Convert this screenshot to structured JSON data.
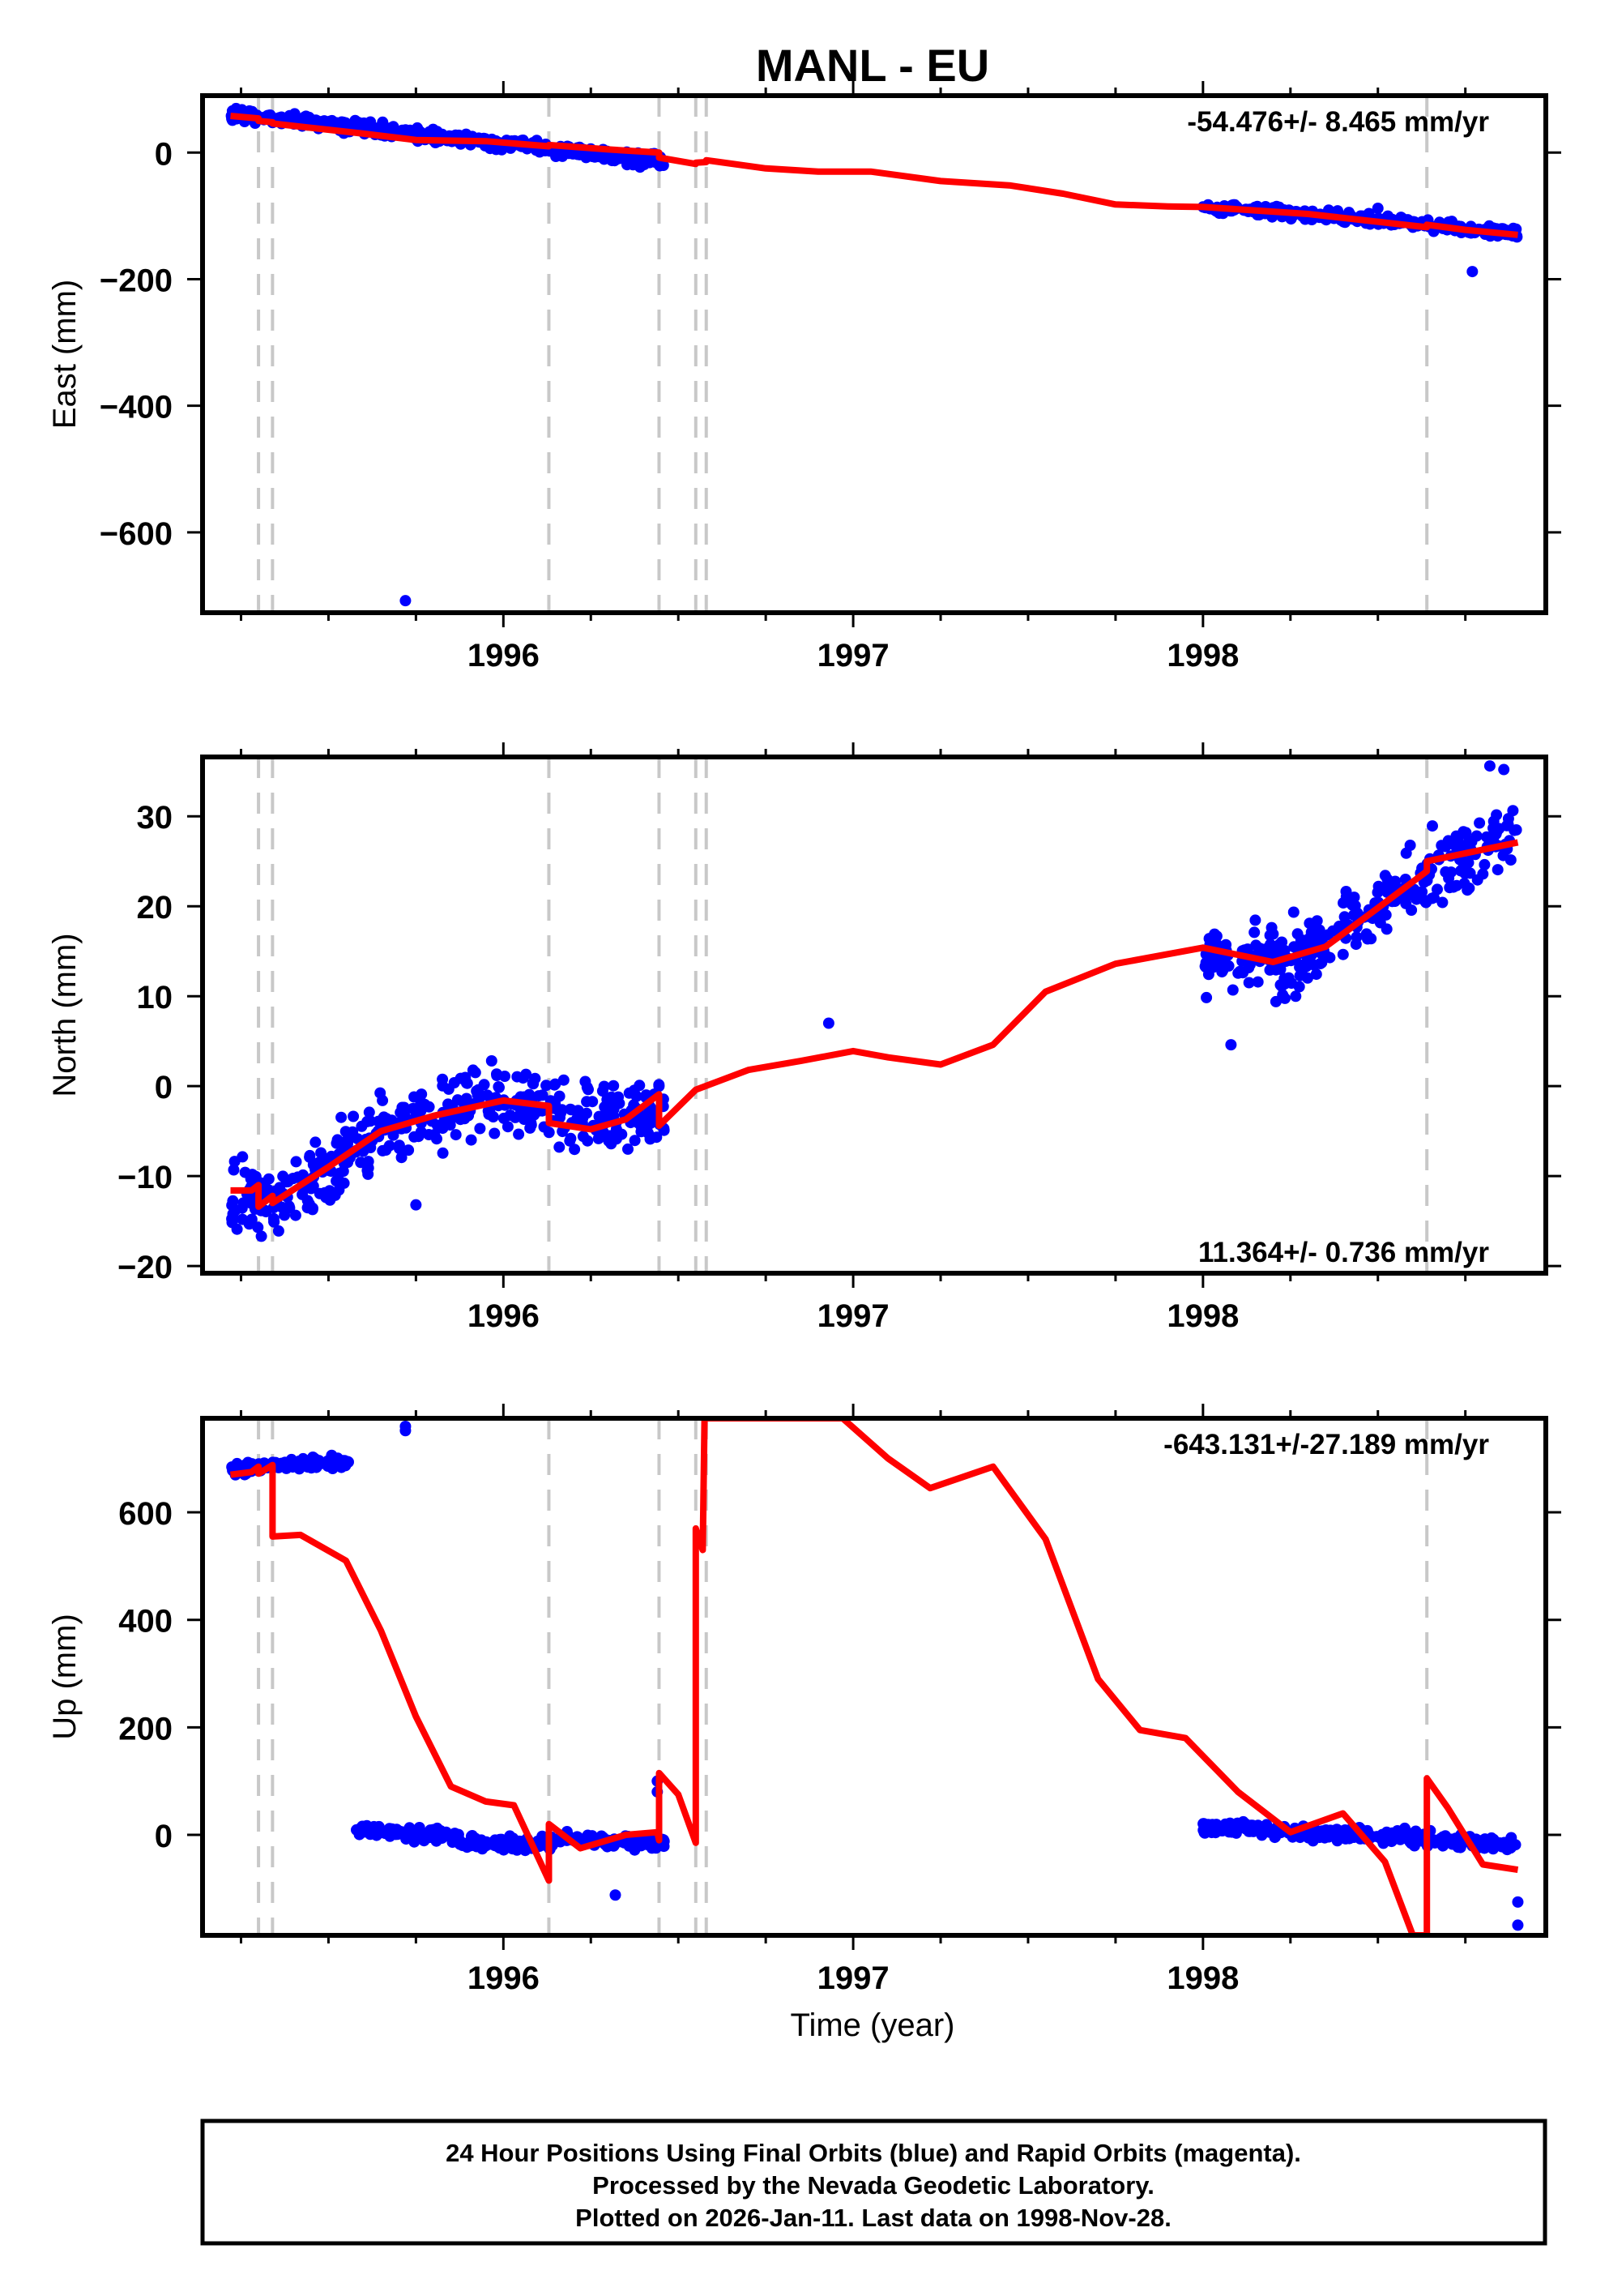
{
  "chart_data": {
    "title": "MANL - EU",
    "type": "scatter",
    "colors": {
      "points": "#0000ff",
      "fit": "#ff0000",
      "breaks": "#c8c8c8",
      "axes": "#000000"
    },
    "x_axis": {
      "label": "Time (year)",
      "range": [
        1995.14,
        1998.98
      ],
      "major_ticks": [
        1996,
        1997,
        1998
      ],
      "major_tick_labels": [
        "1996",
        "1997",
        "1998"
      ],
      "minor_tick_step": 0.25
    },
    "break_lines": [
      1995.3,
      1995.34,
      1996.13,
      1996.445,
      1996.55,
      1996.58,
      1998.64
    ],
    "panels": [
      {
        "id": "east",
        "ylabel": "East (mm)",
        "ylim": [
          -727,
          90
        ],
        "yticks": [
          0,
          -200,
          -400,
          -600
        ],
        "ytick_labels": [
          "0",
          "−200",
          "−400",
          "−600"
        ],
        "rate_text": "-54.476+/- 8.465 mm/yr",
        "rate_position": "top-right",
        "series": [
          {
            "name": "24h positions (final orbits)",
            "kind": "scatter",
            "segments": [
              {
                "x0": 1995.22,
                "x1": 1996.46,
                "trend": [
                  [
                    1995.22,
                    62
                  ],
                  [
                    1995.5,
                    45
                  ],
                  [
                    1995.8,
                    25
                  ],
                  [
                    1996.1,
                    10
                  ],
                  [
                    1996.46,
                    -15
                  ]
                ],
                "spread": 10
              },
              {
                "x0": 1998.0,
                "x1": 1998.9,
                "trend": [
                  [
                    1998.0,
                    -88
                  ],
                  [
                    1998.3,
                    -98
                  ],
                  [
                    1998.6,
                    -112
                  ],
                  [
                    1998.9,
                    -128
                  ]
                ],
                "spread": 8
              }
            ],
            "outliers": [
              [
                1995.72,
                -708
              ],
              [
                1998.5,
                -88
              ],
              [
                1998.77,
                -188
              ],
              [
                1998.6,
                -118
              ]
            ]
          },
          {
            "name": "model fit",
            "kind": "line",
            "points": [
              [
                1995.22,
                58
              ],
              [
                1995.3,
                54
              ],
              [
                1995.3,
                50
              ],
              [
                1995.34,
                48
              ],
              [
                1995.34,
                46
              ],
              [
                1995.6,
                30
              ],
              [
                1995.75,
                20
              ],
              [
                1995.95,
                18
              ],
              [
                1996.13,
                10
              ],
              [
                1996.13,
                12
              ],
              [
                1996.3,
                5
              ],
              [
                1996.445,
                0
              ],
              [
                1996.445,
                -8
              ],
              [
                1996.55,
                -18
              ],
              [
                1996.55,
                -16
              ],
              [
                1996.58,
                -15
              ],
              [
                1996.58,
                -12
              ],
              [
                1996.75,
                -25
              ],
              [
                1996.9,
                -30
              ],
              [
                1997.05,
                -30
              ],
              [
                1997.25,
                -45
              ],
              [
                1997.45,
                -52
              ],
              [
                1997.6,
                -65
              ],
              [
                1997.75,
                -82
              ],
              [
                1997.9,
                -85
              ],
              [
                1998.0,
                -86
              ],
              [
                1998.3,
                -97
              ],
              [
                1998.64,
                -118
              ],
              [
                1998.64,
                -114
              ],
              [
                1998.75,
                -122
              ],
              [
                1998.9,
                -130
              ]
            ]
          }
        ]
      },
      {
        "id": "north",
        "ylabel": "North (mm)",
        "ylim": [
          -20.8,
          36.6
        ],
        "yticks": [
          -20,
          -10,
          0,
          10,
          20,
          30
        ],
        "ytick_labels": [
          "−20",
          "−10",
          "0",
          "10",
          "20",
          "30"
        ],
        "rate_text": "11.364+/- 0.736 mm/yr",
        "rate_position": "bottom-right",
        "series": [
          {
            "name": "24h positions (final orbits)",
            "kind": "scatter",
            "segments": [
              {
                "x0": 1995.22,
                "x1": 1996.46,
                "trend": [
                  [
                    1995.22,
                    -13
                  ],
                  [
                    1995.4,
                    -12
                  ],
                  [
                    1995.6,
                    -6
                  ],
                  [
                    1995.8,
                    -3
                  ],
                  [
                    1996.0,
                    -1
                  ],
                  [
                    1996.2,
                    -3
                  ],
                  [
                    1996.46,
                    -3
                  ]
                ],
                "spread": 4
              },
              {
                "x0": 1998.0,
                "x1": 1998.9,
                "trend": [
                  [
                    1998.0,
                    14
                  ],
                  [
                    1998.25,
                    14
                  ],
                  [
                    1998.45,
                    19
                  ],
                  [
                    1998.65,
                    24
                  ],
                  [
                    1998.9,
                    28
                  ]
                ],
                "spread": 3.5
              }
            ],
            "outliers": [
              [
                1995.75,
                -13.2
              ],
              [
                1996.93,
                7
              ],
              [
                1998.08,
                4.6
              ],
              [
                1998.82,
                35.6
              ],
              [
                1998.86,
                35.2
              ]
            ]
          },
          {
            "name": "model fit",
            "kind": "line",
            "points": [
              [
                1995.22,
                -11.6
              ],
              [
                1995.28,
                -11.6
              ],
              [
                1995.3,
                -11.0
              ],
              [
                1995.3,
                -13.4
              ],
              [
                1995.34,
                -12.2
              ],
              [
                1995.34,
                -13.0
              ],
              [
                1995.5,
                -9
              ],
              [
                1995.65,
                -5
              ],
              [
                1995.8,
                -3.3
              ],
              [
                1996.0,
                -1.6
              ],
              [
                1996.13,
                -2.2
              ],
              [
                1996.13,
                -4.1
              ],
              [
                1996.25,
                -4.8
              ],
              [
                1996.35,
                -3.7
              ],
              [
                1996.445,
                -0.9
              ],
              [
                1996.445,
                -4.4
              ],
              [
                1996.55,
                -0.4
              ],
              [
                1996.7,
                1.8
              ],
              [
                1996.85,
                2.8
              ],
              [
                1997.0,
                3.9
              ],
              [
                1997.1,
                3.2
              ],
              [
                1997.25,
                2.4
              ],
              [
                1997.4,
                4.6
              ],
              [
                1997.55,
                10.5
              ],
              [
                1997.75,
                13.6
              ],
              [
                1998.0,
                15.4
              ],
              [
                1998.2,
                13.8
              ],
              [
                1998.35,
                15.5
              ],
              [
                1998.5,
                19.8
              ],
              [
                1998.64,
                23.9
              ],
              [
                1998.64,
                25.0
              ],
              [
                1998.9,
                27.1
              ]
            ]
          }
        ]
      },
      {
        "id": "up",
        "ylabel": "Up (mm)",
        "ylim": [
          -187,
          775
        ],
        "yticks": [
          0,
          200,
          400,
          600
        ],
        "ytick_labels": [
          "0",
          "200",
          "400",
          "600"
        ],
        "rate_text": "-643.131+/-27.189 mm/yr",
        "rate_position": "top-right",
        "series": [
          {
            "name": "24h positions (final orbits)",
            "kind": "scatter",
            "segments": [
              {
                "x0": 1995.22,
                "x1": 1995.56,
                "trend": [
                  [
                    1995.22,
                    678
                  ],
                  [
                    1995.4,
                    690
                  ],
                  [
                    1995.56,
                    692
                  ]
                ],
                "spread": 12
              },
              {
                "x0": 1995.58,
                "x1": 1996.46,
                "trend": [
                  [
                    1995.58,
                    10
                  ],
                  [
                    1995.8,
                    0
                  ],
                  [
                    1996.0,
                    -20
                  ],
                  [
                    1996.2,
                    -10
                  ],
                  [
                    1996.46,
                    -15
                  ]
                ],
                "spread": 12
              },
              {
                "x0": 1998.0,
                "x1": 1998.9,
                "trend": [
                  [
                    1998.0,
                    15
                  ],
                  [
                    1998.3,
                    5
                  ],
                  [
                    1998.6,
                    -5
                  ],
                  [
                    1998.9,
                    -20
                  ]
                ],
                "spread": 12
              }
            ],
            "outliers": [
              [
                1995.72,
                752
              ],
              [
                1995.72,
                760
              ],
              [
                1996.32,
                -112
              ],
              [
                1996.44,
                100
              ],
              [
                1996.44,
                80
              ],
              [
                1998.9,
                -125
              ],
              [
                1998.9,
                -168
              ]
            ]
          },
          {
            "name": "model fit",
            "kind": "line",
            "points": [
              [
                1995.22,
                670
              ],
              [
                1995.28,
                675
              ],
              [
                1995.3,
                685
              ],
              [
                1995.3,
                672
              ],
              [
                1995.34,
                688
              ],
              [
                1995.34,
                555
              ],
              [
                1995.42,
                558
              ],
              [
                1995.55,
                510
              ],
              [
                1995.65,
                380
              ],
              [
                1995.75,
                220
              ],
              [
                1995.85,
                90
              ],
              [
                1995.95,
                62
              ],
              [
                1996.03,
                55
              ],
              [
                1996.13,
                -85
              ],
              [
                1996.13,
                20
              ],
              [
                1996.22,
                -25
              ],
              [
                1996.35,
                0
              ],
              [
                1996.44,
                5
              ],
              [
                1996.445,
                -10
              ],
              [
                1996.445,
                115
              ],
              [
                1996.5,
                75
              ],
              [
                1996.55,
                -15
              ],
              [
                1996.55,
                570
              ],
              [
                1996.57,
                530
              ],
              [
                1996.575,
                775
              ],
              [
                1996.97,
                775
              ],
              [
                1997.1,
                700
              ],
              [
                1997.22,
                645
              ],
              [
                1997.4,
                685
              ],
              [
                1997.55,
                550
              ],
              [
                1997.7,
                290
              ],
              [
                1997.82,
                195
              ],
              [
                1997.95,
                180
              ],
              [
                1998.1,
                80
              ],
              [
                1998.25,
                5
              ],
              [
                1998.4,
                40
              ],
              [
                1998.52,
                -50
              ],
              [
                1998.6,
                -187
              ],
              [
                1998.64,
                -187
              ],
              [
                1998.64,
                105
              ],
              [
                1998.7,
                50
              ],
              [
                1998.8,
                -55
              ],
              [
                1998.9,
                -65
              ]
            ]
          }
        ]
      }
    ]
  },
  "caption": {
    "lines": [
      "24 Hour Positions Using Final Orbits (blue) and Rapid Orbits (magenta).",
      "Processed by the Nevada Geodetic Laboratory.",
      "Plotted on 2026-Jan-11. Last data on 1998-Nov-28."
    ]
  }
}
